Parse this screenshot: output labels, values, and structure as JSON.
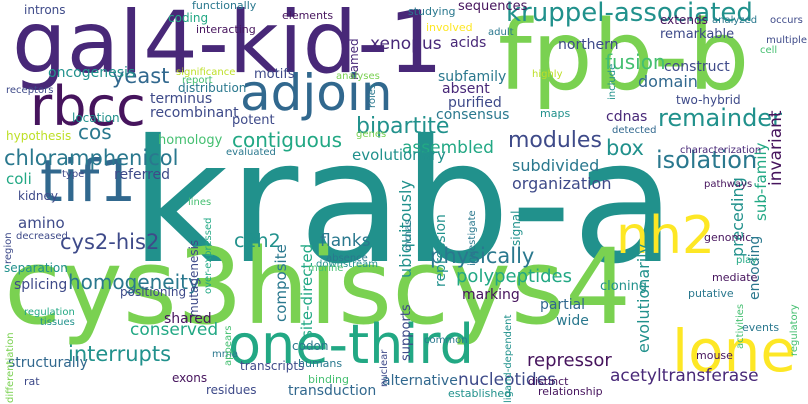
{
  "colors": {
    "dark_purple": "#46145d",
    "purple": "#482878",
    "indigo": "#3e4a89",
    "blue": "#31688e",
    "steel": "#2a788e",
    "teal": "#21918c",
    "sea": "#22a884",
    "green": "#44bf70",
    "lime": "#7ad151",
    "yellow_green": "#bddf26",
    "yellow": "#fde725"
  },
  "words": [
    "krab-a",
    "cys3hiscys4",
    "gal4-kid-1",
    "fpb-b",
    "adjoin",
    "rbcc",
    "one-third",
    "tif1",
    "lone",
    "nh2",
    "kruppel-associated",
    "bipartite",
    "remainder",
    "chloramphenicol",
    "contiguous",
    "isolation",
    "cys2-his2",
    "modules",
    "physically",
    "interrupts",
    "homogeneity",
    "polypeptides",
    "box",
    "yeast",
    "xenopus",
    "fusion",
    "c2h2",
    "assembled",
    "subdivided",
    "organization",
    "repressor",
    "conserved",
    "cos",
    "coli",
    "invariant",
    "composite",
    "flanks",
    "preceding",
    "sub-family",
    "introns",
    "functionally",
    "elements",
    "studying",
    "sequences",
    "coding",
    "interacting",
    "involved",
    "adult",
    "northern",
    "remarkable",
    "domain",
    "construct",
    "extends",
    "analyzed",
    "occurs",
    "multiple",
    "named",
    "acids",
    "oncogenesis",
    "motifs",
    "subfamily",
    "absent",
    "purified",
    "two-hybrid",
    "terminus",
    "recombinant",
    "distribution",
    "significance",
    "report",
    "potent",
    "consensus",
    "maps",
    "cdnas",
    "homology",
    "hypothesis",
    "evaluated",
    "genes",
    "detected",
    "characterization",
    "evolutionary",
    "referred",
    "kidney",
    "amino",
    "separation",
    "splicing",
    "structurally",
    "mutagenesis",
    "positioning",
    "shared",
    "codon",
    "transcripts",
    "mrna",
    "site-directed",
    "ubiquitously",
    "marking",
    "partial",
    "wide",
    "cloning",
    "putative",
    "evolutionarily",
    "acetyltransferase",
    "alternative",
    "nucleotides",
    "transduction",
    "residues",
    "exons",
    "rat",
    "binding",
    "humans",
    "distinct",
    "common",
    "established",
    "relationship",
    "mouse",
    "events",
    "activities",
    "regulatory",
    "supports",
    "repression",
    "encoding",
    "genomic",
    "mediate",
    "pathways",
    "play",
    "signal",
    "investigate",
    "downstream",
    "absence",
    "murine",
    "nuclear",
    "ligand-dependent",
    "decreased",
    "type",
    "lines",
    "region",
    "regulation",
    "tissues",
    "differentiation",
    "appears",
    "over-expressed",
    "highly",
    "include",
    "analyses",
    "roles",
    "cell",
    "receptors",
    "location",
    "mrnas"
  ]
}
